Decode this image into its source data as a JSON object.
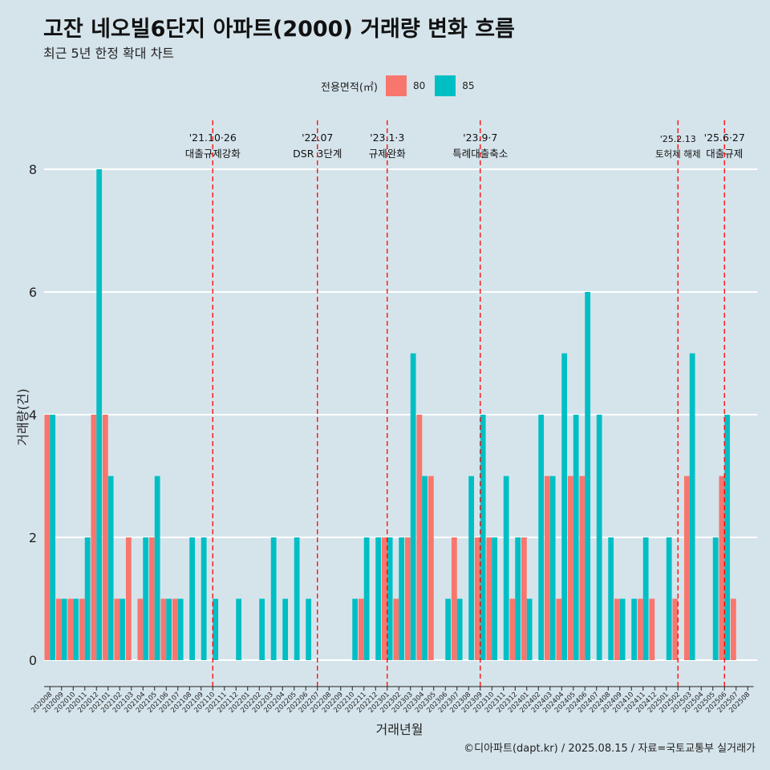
{
  "title": "고잔 네오빌6단지 아파트(2000) 거래량 변화 흐름",
  "subtitle": "최근 5년 한정 확대 차트",
  "legend": {
    "title": "전용면적(㎡)",
    "items": [
      {
        "label": "80",
        "color": "#f8766d"
      },
      {
        "label": "85",
        "color": "#00bfc4"
      }
    ]
  },
  "caption": "©디아파트(dapt.kr) / 2025.08.15 / 자료=국토교통부 실거래가",
  "chart_data": {
    "type": "bar",
    "xlabel": "거래년월",
    "ylabel": "거래량(건)",
    "ylim": [
      0,
      8
    ],
    "yticks": [
      0,
      2,
      4,
      6,
      8
    ],
    "grid": true,
    "legend_position": "top",
    "categories": [
      "202008",
      "202009",
      "202010",
      "202011",
      "202012",
      "202101",
      "202102",
      "202103",
      "202104",
      "202105",
      "202106",
      "202107",
      "202108",
      "202109",
      "202110",
      "202111",
      "202112",
      "202201",
      "202202",
      "202203",
      "202204",
      "202205",
      "202206",
      "202207",
      "202208",
      "202209",
      "202210",
      "202211",
      "202212",
      "202301",
      "202302",
      "202303",
      "202304",
      "202305",
      "202306",
      "202307",
      "202308",
      "202309",
      "202310",
      "202311",
      "202312",
      "202401",
      "202402",
      "202403",
      "202404",
      "202405",
      "202406",
      "202407",
      "202408",
      "202409",
      "202410",
      "202411",
      "202412",
      "202501",
      "202502",
      "202503",
      "202504",
      "202505",
      "202506",
      "202507",
      "202508"
    ],
    "series": [
      {
        "name": "80",
        "color": "#f8766d",
        "values": [
          4,
          1,
          1,
          1,
          4,
          4,
          1,
          2,
          1,
          2,
          1,
          1,
          0,
          0,
          0,
          0,
          0,
          0,
          0,
          0,
          0,
          0,
          0,
          0,
          0,
          0,
          0,
          1,
          0,
          2,
          1,
          2,
          4,
          3,
          0,
          2,
          0,
          2,
          2,
          0,
          1,
          2,
          0,
          3,
          1,
          3,
          3,
          0,
          0,
          1,
          0,
          1,
          1,
          0,
          1,
          3,
          0,
          0,
          3,
          1,
          0
        ]
      },
      {
        "name": "85",
        "color": "#00bfc4",
        "values": [
          4,
          1,
          1,
          2,
          8,
          3,
          1,
          0,
          2,
          3,
          1,
          1,
          2,
          2,
          1,
          0,
          1,
          0,
          1,
          2,
          1,
          2,
          1,
          0,
          0,
          0,
          1,
          2,
          2,
          2,
          2,
          5,
          3,
          0,
          1,
          1,
          3,
          4,
          2,
          3,
          2,
          1,
          4,
          3,
          5,
          4,
          6,
          4,
          2,
          1,
          1,
          2,
          0,
          2,
          0,
          5,
          0,
          2,
          4,
          0,
          0
        ]
      }
    ],
    "annotations": [
      {
        "x": "202110",
        "line1": "'21.10·26",
        "line2": "대출규제강화"
      },
      {
        "x": "202207",
        "line1": "'22.07",
        "line2": "DSR 3단계"
      },
      {
        "x": "202301",
        "line1": "'23.1·3",
        "line2": "규제완화"
      },
      {
        "x": "202309",
        "line1": "'23.9·7",
        "line2": "특례대출축소"
      },
      {
        "x": "202502",
        "line1": "'25.2.13",
        "line2": "토허제 해제"
      },
      {
        "x": "202506",
        "line1": "'25.6·27",
        "line2": "대출규제"
      }
    ]
  }
}
